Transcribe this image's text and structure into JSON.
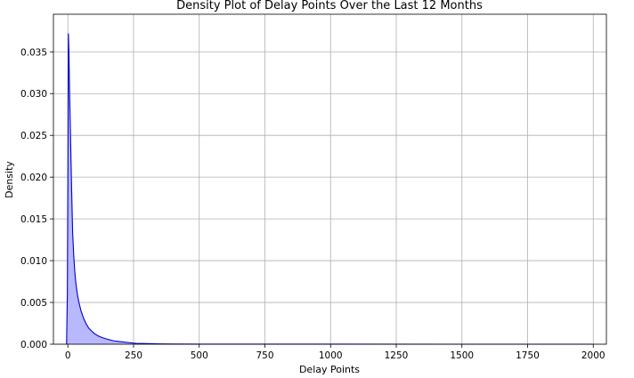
{
  "chart_data": {
    "type": "area",
    "title": "Density Plot of Delay Points Over the Last 12 Months",
    "xlabel": "Delay Points",
    "ylabel": "Density",
    "xlim": [
      -55,
      2050
    ],
    "ylim": [
      0,
      0.0395
    ],
    "xticks": [
      0,
      250,
      500,
      750,
      1000,
      1250,
      1500,
      1750,
      2000
    ],
    "yticks": [
      0.0,
      0.005,
      0.01,
      0.015,
      0.02,
      0.025,
      0.03,
      0.035
    ],
    "ytick_labels": [
      "0.000",
      "0.005",
      "0.010",
      "0.015",
      "0.020",
      "0.025",
      "0.030",
      "0.035"
    ],
    "grid": true,
    "line_color": "#0000cc",
    "fill_color": "#b8b8ff",
    "series": [
      {
        "x": [
          -5,
          -2,
          0,
          2,
          4,
          6,
          8,
          10,
          14,
          18,
          22,
          26,
          30,
          36,
          42,
          50,
          60,
          70,
          80,
          90,
          100,
          115,
          130,
          150,
          175,
          200,
          230,
          260,
          300,
          350,
          400,
          500,
          700,
          1000,
          1500,
          2000
        ],
        "y": [
          0,
          0.006,
          0.02,
          0.0372,
          0.035,
          0.031,
          0.028,
          0.025,
          0.019,
          0.0135,
          0.0108,
          0.0088,
          0.0074,
          0.006,
          0.005,
          0.004,
          0.0031,
          0.0024,
          0.0019,
          0.0016,
          0.0013,
          0.001,
          0.0008,
          0.0006,
          0.0004,
          0.0003,
          0.0002,
          0.0001,
          7e-05,
          4e-05,
          2e-05,
          1e-05,
          5e-06,
          2e-06,
          1e-06,
          0
        ]
      }
    ]
  }
}
